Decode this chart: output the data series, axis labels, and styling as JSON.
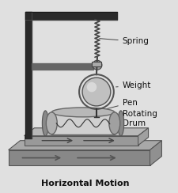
{
  "background_color": "#e8e8e8",
  "fig_bg": "#e0e0e0",
  "labels": {
    "spring": "Spring",
    "weight": "Weight",
    "pen": "Pen",
    "rotating_drum": "Rotating\nDrum",
    "horizontal_motion": "Horizontal Motion"
  },
  "colors": {
    "frame": "#2a2a2a",
    "frame_light": "#555555",
    "drum_face": "#c8c8c8",
    "drum_end": "#909090",
    "drum_dark": "#787878",
    "weight_fill": "#b8b8b8",
    "weight_light": "#d8d8d8",
    "spring_color": "#444444",
    "base_top": "#b0b0b0",
    "base_front": "#888888",
    "base_side": "#999999",
    "inner_base_top": "#c0c0c0",
    "inner_base_front": "#909090",
    "text": "#111111",
    "arrow": "#555555",
    "mount": "#888888"
  }
}
